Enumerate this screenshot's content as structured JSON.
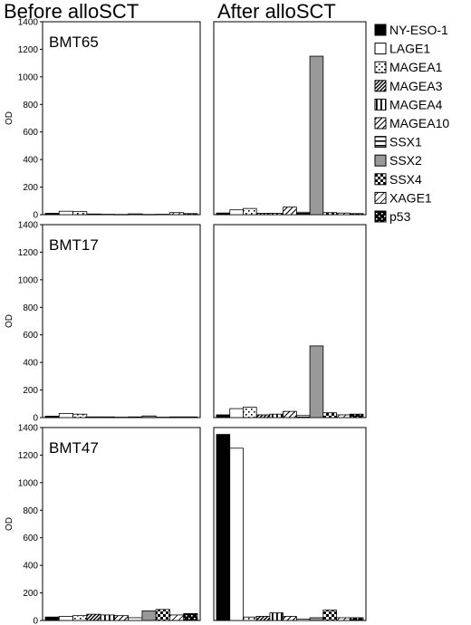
{
  "chart_data": {
    "type": "bar",
    "column_titles": [
      "Before alloSCT",
      "After alloSCT"
    ],
    "ylabel": "OD",
    "ylim": [
      0,
      1400
    ],
    "yticks": [
      0,
      200,
      400,
      600,
      800,
      1000,
      1200,
      1400
    ],
    "categories": [
      "NY-ESO-1",
      "LAGE1",
      "MAGEA1",
      "MAGEA3",
      "MAGEA4",
      "MAGEA10",
      "SSX1",
      "SSX2",
      "SSX4",
      "XAGE1",
      "p53"
    ],
    "legend": {
      "position": "right",
      "entries": [
        {
          "label": "NY-ESO-1",
          "pattern": "solid"
        },
        {
          "label": "LAGE1",
          "pattern": "empty"
        },
        {
          "label": "MAGEA1",
          "pattern": "dots"
        },
        {
          "label": "MAGEA3",
          "pattern": "diag-dense"
        },
        {
          "label": "MAGEA4",
          "pattern": "vertical"
        },
        {
          "label": "MAGEA10",
          "pattern": "diag"
        },
        {
          "label": "SSX1",
          "pattern": "horizontal"
        },
        {
          "label": "SSX2",
          "pattern": "gray"
        },
        {
          "label": "SSX4",
          "pattern": "checker"
        },
        {
          "label": "XAGE1",
          "pattern": "diag-light"
        },
        {
          "label": "p53",
          "pattern": "black-dots"
        }
      ]
    },
    "panels": [
      {
        "name": "BMT65",
        "before": [
          10,
          25,
          22,
          5,
          3,
          2,
          6,
          2,
          3,
          15,
          8
        ],
        "after": [
          12,
          35,
          45,
          10,
          10,
          55,
          18,
          1150,
          15,
          12,
          8
        ]
      },
      {
        "name": "BMT17",
        "before": [
          10,
          30,
          25,
          5,
          5,
          3,
          5,
          12,
          3,
          5,
          5
        ],
        "after": [
          20,
          65,
          75,
          20,
          25,
          45,
          15,
          520,
          35,
          20,
          25
        ]
      },
      {
        "name": "BMT47",
        "before": [
          25,
          30,
          35,
          45,
          40,
          35,
          20,
          70,
          80,
          40,
          50
        ],
        "after": [
          1350,
          1250,
          25,
          30,
          55,
          30,
          10,
          20,
          75,
          20,
          20
        ]
      }
    ]
  }
}
